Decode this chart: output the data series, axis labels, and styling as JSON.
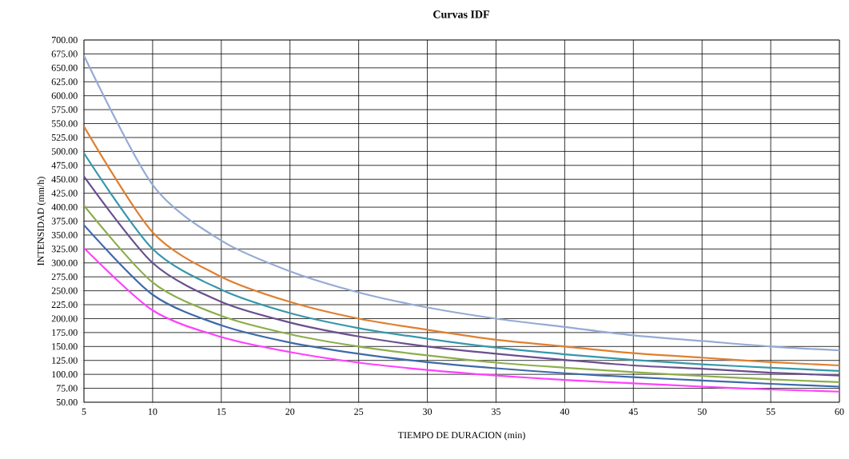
{
  "chart_data": {
    "type": "line",
    "title": "Curvas IDF",
    "xlabel": "TIEMPO DE DURACION (min)",
    "ylabel": "INTENSIDAD (mm/h)",
    "x": [
      5,
      10,
      15,
      20,
      25,
      30,
      35,
      40,
      45,
      50,
      55,
      60
    ],
    "series": [
      {
        "color": "#95abd4",
        "values": [
          672,
          440,
          340,
          285,
          247,
          220,
          200,
          185,
          170,
          160,
          150,
          143
        ]
      },
      {
        "color": "#e07f2f",
        "values": [
          545,
          355,
          275,
          230,
          200,
          180,
          162,
          150,
          138,
          130,
          122,
          116
        ]
      },
      {
        "color": "#3797ab",
        "values": [
          497,
          325,
          252,
          210,
          183,
          164,
          148,
          136,
          126,
          118,
          112,
          106
        ]
      },
      {
        "color": "#6a4f8f",
        "values": [
          455,
          300,
          230,
          193,
          168,
          150,
          137,
          126,
          116,
          110,
          103,
          98
        ]
      },
      {
        "color": "#8cae4b",
        "values": [
          403,
          265,
          205,
          172,
          150,
          134,
          121,
          112,
          104,
          97,
          91,
          86
        ]
      },
      {
        "color": "#3e6aa8",
        "values": [
          368,
          243,
          188,
          157,
          137,
          122,
          111,
          102,
          95,
          89,
          83,
          78
        ]
      },
      {
        "color": "#ff40ff",
        "values": [
          327,
          215,
          167,
          140,
          121,
          108,
          98,
          90,
          84,
          78,
          73,
          69
        ]
      }
    ],
    "xlim": [
      5,
      60
    ],
    "xticks": [
      5,
      10,
      15,
      20,
      25,
      30,
      35,
      40,
      45,
      50,
      55,
      60
    ],
    "ylim": [
      50,
      700
    ],
    "yticks": [
      {
        "value": 50,
        "label": "50.00"
      },
      {
        "value": 75,
        "label": "75.00"
      },
      {
        "value": 100,
        "label": "100.00"
      },
      {
        "value": 125,
        "label": "125.00"
      },
      {
        "value": 150,
        "label": "150.00"
      },
      {
        "value": 175,
        "label": "175.00"
      },
      {
        "value": 200,
        "label": "200.00"
      },
      {
        "value": 225,
        "label": "225.00"
      },
      {
        "value": 250,
        "label": "250.00"
      },
      {
        "value": 275,
        "label": "275.00"
      },
      {
        "value": 300,
        "label": "300.00"
      },
      {
        "value": 325,
        "label": "325.00"
      },
      {
        "value": 350,
        "label": "350.00"
      },
      {
        "value": 375,
        "label": "375.00"
      },
      {
        "value": 400,
        "label": "400.00"
      },
      {
        "value": 425,
        "label": "425.00"
      },
      {
        "value": 450,
        "label": "450.00"
      },
      {
        "value": 475,
        "label": "475.00"
      },
      {
        "value": 500,
        "label": "500.00"
      },
      {
        "value": 525,
        "label": "525.00"
      },
      {
        "value": 550,
        "label": "550.00"
      },
      {
        "value": 575,
        "label": "575.00"
      },
      {
        "value": 600,
        "label": "600.00"
      },
      {
        "value": 625,
        "label": "625.00"
      },
      {
        "value": 650,
        "label": "650.00"
      },
      {
        "value": 675,
        "label": "675.00"
      },
      {
        "value": 700,
        "label": "700.00"
      }
    ],
    "grid": true,
    "legend": false,
    "marker": "none",
    "line_style": "solid"
  }
}
